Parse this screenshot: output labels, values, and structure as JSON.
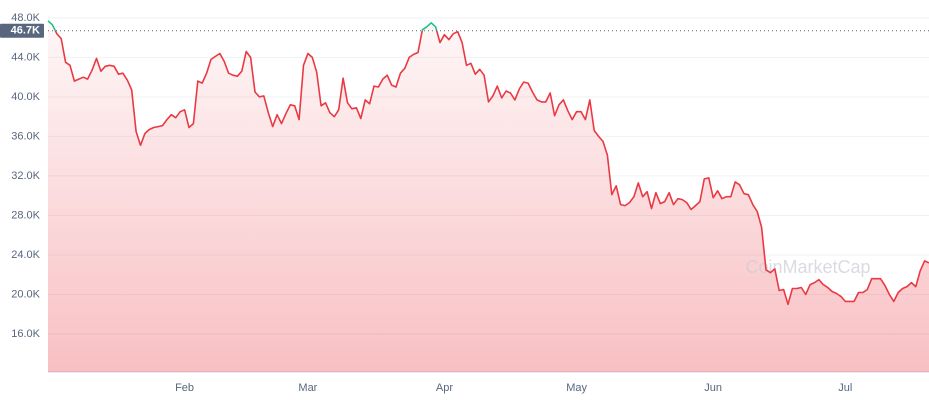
{
  "chart_data": {
    "type": "line",
    "categories": [
      null,
      null,
      null,
      null,
      null,
      null,
      null,
      null,
      null,
      null,
      null,
      null,
      null,
      null,
      null,
      null,
      null,
      null,
      null,
      null,
      null,
      null,
      null,
      null,
      null,
      null,
      null,
      null,
      null,
      null,
      null,
      "Feb",
      null,
      null,
      null,
      null,
      null,
      null,
      null,
      null,
      null,
      null,
      null,
      null,
      null,
      null,
      null,
      null,
      null,
      null,
      null,
      null,
      null,
      null,
      null,
      null,
      null,
      null,
      null,
      "Mar",
      null,
      null,
      null,
      null,
      null,
      null,
      null,
      null,
      null,
      null,
      null,
      null,
      null,
      null,
      null,
      null,
      null,
      null,
      null,
      null,
      null,
      null,
      null,
      null,
      null,
      null,
      null,
      null,
      null,
      null,
      "Apr",
      null,
      null,
      null,
      null,
      null,
      null,
      null,
      null,
      null,
      null,
      null,
      null,
      null,
      null,
      null,
      null,
      null,
      null,
      null,
      null,
      null,
      null,
      null,
      null,
      null,
      null,
      null,
      null,
      null,
      "May",
      null,
      null,
      null,
      null,
      null,
      null,
      null,
      null,
      null,
      null,
      null,
      null,
      null,
      null,
      null,
      null,
      null,
      null,
      null,
      null,
      null,
      null,
      null,
      null,
      null,
      null,
      null,
      null,
      null,
      null,
      "Jun",
      null,
      null,
      null,
      null,
      null,
      null,
      null,
      null,
      null,
      null,
      null,
      null,
      null,
      null,
      null,
      null,
      null,
      null,
      null,
      null,
      null,
      null,
      null,
      null,
      null,
      null,
      null,
      null,
      null,
      "Jul",
      null,
      null,
      null,
      null,
      null,
      null,
      null,
      null,
      null,
      null,
      null,
      null,
      null,
      null,
      null,
      null,
      null,
      null,
      null
    ],
    "values": [
      47700,
      47300,
      46400,
      45900,
      43500,
      43200,
      41600,
      41800,
      42000,
      41800,
      42700,
      43900,
      42600,
      43100,
      43200,
      43100,
      42300,
      42400,
      41700,
      40700,
      36500,
      35100,
      36300,
      36700,
      36900,
      37000,
      37100,
      37700,
      38200,
      37900,
      38500,
      38700,
      36900,
      37300,
      41600,
      41400,
      42400,
      43800,
      44100,
      44400,
      43600,
      42400,
      42200,
      42100,
      42600,
      44600,
      44000,
      40500,
      40000,
      40100,
      38400,
      37000,
      38200,
      37300,
      38300,
      39200,
      39100,
      37700,
      43200,
      44400,
      44000,
      42500,
      39100,
      39400,
      38400,
      38000,
      38700,
      41900,
      39400,
      38800,
      38900,
      37800,
      39700,
      39300,
      41100,
      41000,
      41800,
      42200,
      41200,
      41000,
      42400,
      42900,
      44000,
      44300,
      44500,
      46800,
      47100,
      47500,
      47100,
      45500,
      46300,
      45800,
      46400,
      46600,
      45500,
      43200,
      43400,
      42300,
      42800,
      42200,
      39500,
      40100,
      41100,
      39900,
      40600,
      40400,
      39700,
      40800,
      41500,
      41400,
      40500,
      39700,
      39500,
      39500,
      40400,
      38100,
      39200,
      39700,
      38600,
      37700,
      38500,
      38500,
      37700,
      39700,
      36600,
      36000,
      35500,
      34100,
      30100,
      31000,
      29100,
      29000,
      29300,
      29900,
      31300,
      29900,
      30400,
      28700,
      30300,
      29200,
      29400,
      30300,
      29100,
      29700,
      29600,
      29300,
      28600,
      29000,
      29400,
      31700,
      31800,
      29800,
      30500,
      29700,
      29900,
      29900,
      31400,
      31100,
      30200,
      30100,
      29100,
      28400,
      26800,
      22500,
      22200,
      22600,
      20400,
      20500,
      19000,
      20600,
      20600,
      20700,
      20000,
      21000,
      21200,
      21500,
      21000,
      20700,
      20300,
      20100,
      19800,
      19300,
      19300,
      19300,
      20200,
      20200,
      20500,
      21600,
      21600,
      21600,
      20900,
      20000,
      19300,
      20200,
      20600,
      20800,
      21200,
      20800,
      22400,
      23400,
      23200
    ],
    "color": "#ea3943",
    "color_above_reference": "#16c784",
    "reference_line": {
      "value": 46700,
      "label": "46.7K"
    },
    "ylim": [
      12150,
      48800
    ],
    "yticks": [
      {
        "value": 16000,
        "label": "16.0K"
      },
      {
        "value": 20000,
        "label": "20.0K"
      },
      {
        "value": 24000,
        "label": "24.0K"
      },
      {
        "value": 28000,
        "label": "28.0K"
      },
      {
        "value": 32000,
        "label": "32.0K"
      },
      {
        "value": 36000,
        "label": "36.0K"
      },
      {
        "value": 40000,
        "label": "40.0K"
      },
      {
        "value": 44000,
        "label": "44.0K"
      },
      {
        "value": 48000,
        "label": "48.0K"
      }
    ],
    "grid": true,
    "watermark": "CoinMarketCap"
  }
}
